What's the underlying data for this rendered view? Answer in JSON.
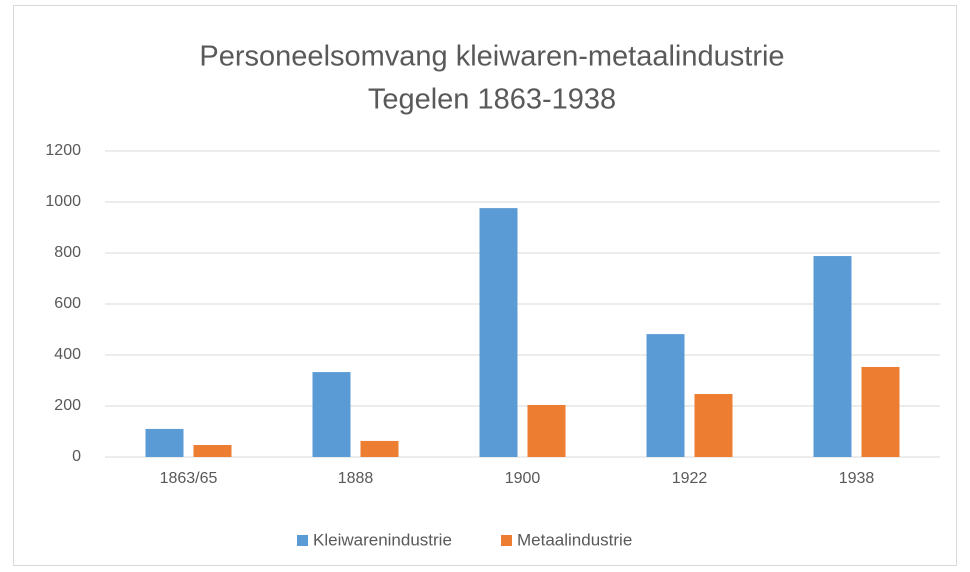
{
  "chart_data": {
    "type": "bar",
    "title": [
      "Personeelsomvang kleiwaren-metaalindustrie",
      "Tegelen 1863-1938"
    ],
    "categories": [
      "1863/65",
      "1888",
      "1900",
      "1922",
      "1938"
    ],
    "series": [
      {
        "name": "Kleiwarenindustrie",
        "color": "#5b9bd5",
        "values": [
          110,
          333,
          976,
          482,
          788
        ]
      },
      {
        "name": "Metaalindustrie",
        "color": "#ed7d31",
        "values": [
          47,
          63,
          204,
          247,
          353
        ]
      }
    ],
    "ylim": [
      0,
      1200
    ],
    "yticks": [
      0,
      200,
      400,
      600,
      800,
      1000,
      1200
    ],
    "grid": true,
    "legend": "bottom"
  }
}
